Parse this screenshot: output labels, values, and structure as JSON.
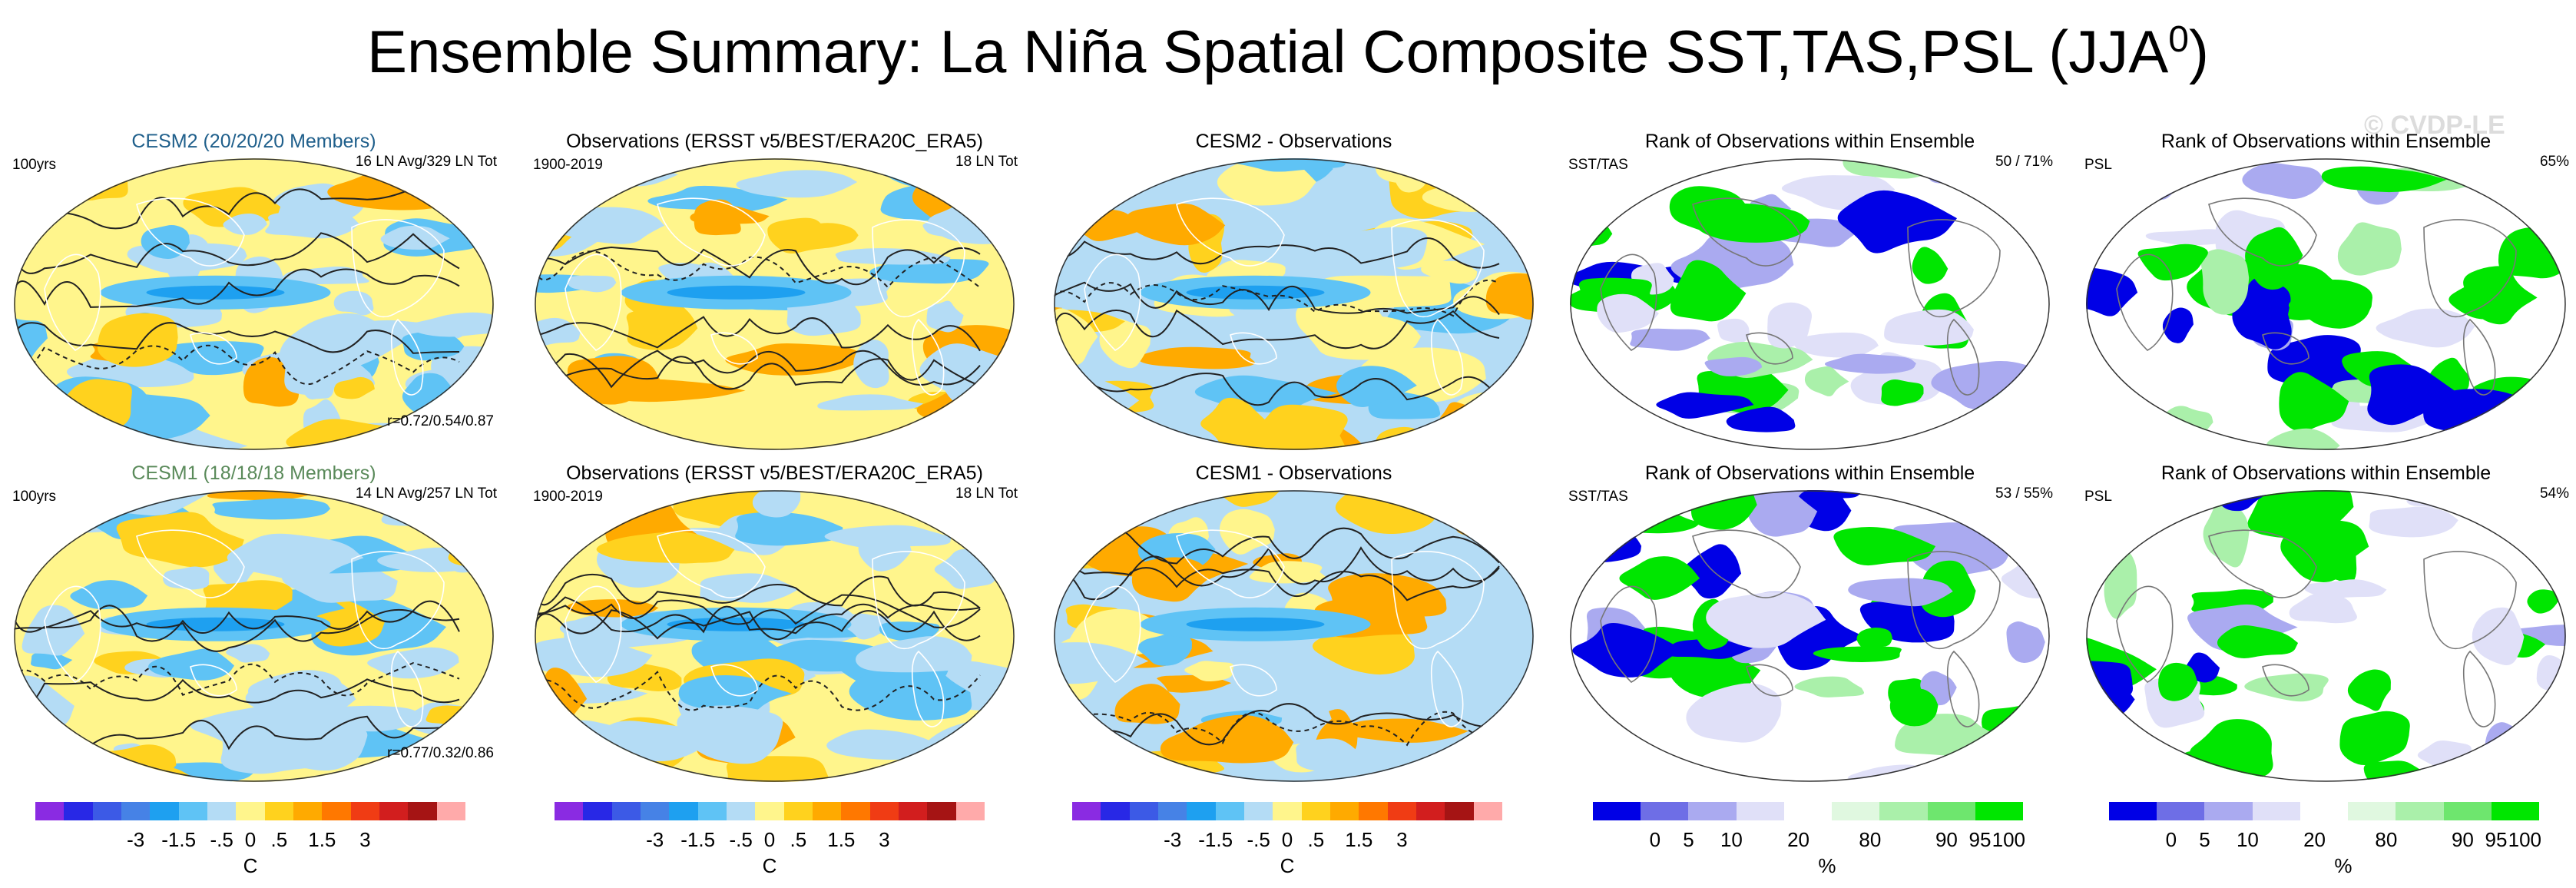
{
  "title": "Ensemble Summary: La Niña Spatial Composite SST,TAS,PSL (JJA",
  "title_superscript": "0",
  "title_close": ")",
  "watermark": "© CVDP-LE",
  "rows": [
    {
      "panels": [
        {
          "title": "CESM2 (20/20/20 Members)",
          "title_color": "#1f5f8b",
          "left_label": "100yrs",
          "right_label": "16 LN Avg/329 LN Tot",
          "bottom_label": "r=0.72/0.54/0.87",
          "type": "sst"
        },
        {
          "title": "Observations (ERSST v5/BEST/ERA20C_ERA5)",
          "left_label": "1900-2019",
          "right_label": "18 LN Tot",
          "type": "sst"
        },
        {
          "title": "CESM2 - Observations",
          "type": "diff"
        },
        {
          "title": "Rank of Observations within Ensemble",
          "left_label": "SST/TAS",
          "right_label": "50 /  71%",
          "type": "rank"
        },
        {
          "title": "Rank of Observations within Ensemble",
          "left_label": "PSL",
          "right_label": "65%",
          "type": "rankpsl"
        }
      ]
    },
    {
      "panels": [
        {
          "title": "CESM1 (18/18/18 Members)",
          "title_color": "#5a8a5a",
          "left_label": "100yrs",
          "right_label": "14 LN Avg/257 LN Tot",
          "bottom_label": "r=0.77/0.32/0.86",
          "type": "sst"
        },
        {
          "title": "Observations (ERSST v5/BEST/ERA20C_ERA5)",
          "left_label": "1900-2019",
          "right_label": "18 LN Tot",
          "type": "sst"
        },
        {
          "title": "CESM1 - Observations",
          "type": "diff"
        },
        {
          "title": "Rank of Observations within Ensemble",
          "left_label": "SST/TAS",
          "right_label": "53 /  55%",
          "type": "rank"
        },
        {
          "title": "Rank of Observations within Ensemble",
          "left_label": "PSL",
          "right_label": "54%",
          "type": "rankpsl"
        }
      ]
    }
  ],
  "chart_data": {
    "type": "heatmap",
    "description_type": "global map panels (2 rows x 5 columns) with labelbars",
    "colorbars": [
      {
        "unit": "C",
        "tick_labels": [
          "-3",
          "-1.5",
          "-.5",
          "0",
          ".5",
          "1.5",
          "3"
        ],
        "colors": [
          "#8a2be2",
          "#2828e6",
          "#3c5ae6",
          "#4682e6",
          "#1ea0f0",
          "#5fc3f5",
          "#b4dcf5",
          "#fff58c",
          "#ffd21e",
          "#ffaa00",
          "#ff7800",
          "#f03c14",
          "#d21e1e",
          "#a51414",
          "#ffaaaa"
        ]
      },
      {
        "unit": "%",
        "tick_labels": [
          "0",
          "5",
          "10",
          "20",
          "80",
          "90",
          "95",
          "100"
        ],
        "colors": [
          "#0000e6",
          "#6e6ee6",
          "#aaaaf0",
          "#e0e0f8",
          "#ffffff",
          "#e0f8e0",
          "#aaf0aa",
          "#6ee66e",
          "#00e600"
        ]
      }
    ],
    "colorbar_assignment": [
      "C",
      "C",
      "C",
      "%",
      "%"
    ]
  }
}
